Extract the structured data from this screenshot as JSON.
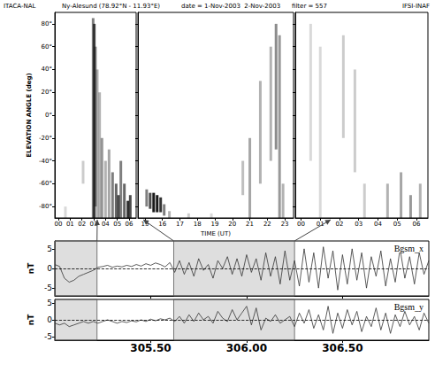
{
  "header": {
    "instrument": "ITACA-NAL",
    "station": "Ny-Alesund (78.92°N - 11.93°E)",
    "date": "date = 1-Nov-2003  2-Nov-2003",
    "filter": "filter = 557",
    "institute": "IFSI-INAF"
  },
  "chart_data": [
    {
      "type": "heatmap",
      "ylabel": "ELEVATION ANGLE (deg)",
      "color": "#000000",
      "grid": false,
      "xlim": [
        -0.3,
        6.6
      ],
      "xticks": [
        {
          "value": 0,
          "label": "00"
        },
        {
          "value": 1,
          "label": "01"
        },
        {
          "value": 2,
          "label": "02"
        },
        {
          "value": 3,
          "label": "03"
        },
        {
          "value": 4,
          "label": "04"
        },
        {
          "value": 5,
          "label": "05"
        },
        {
          "value": 6,
          "label": "06"
        }
      ],
      "ylim": [
        -90,
        90
      ],
      "yticks": [
        {
          "value": -80,
          "label": "-80°"
        },
        {
          "value": -60,
          "label": "-60°"
        },
        {
          "value": -40,
          "label": "-40°"
        },
        {
          "value": -20,
          "label": "-20°"
        },
        {
          "value": 0,
          "label": "0°"
        },
        {
          "value": 20,
          "label": "20°"
        },
        {
          "value": 40,
          "label": "40°"
        },
        {
          "value": 60,
          "label": "60°"
        },
        {
          "value": 80,
          "label": "80°"
        }
      ],
      "streaks": [
        [
          0.6,
          -90,
          -80,
          0.15
        ],
        [
          2.1,
          -60,
          -40,
          0.2
        ],
        [
          2.95,
          -90,
          85,
          0.5
        ],
        [
          3.05,
          -90,
          80,
          0.7
        ],
        [
          3.15,
          -80,
          60,
          0.4
        ],
        [
          3.3,
          -90,
          40,
          0.3
        ],
        [
          3.5,
          -90,
          20,
          0.3
        ],
        [
          3.7,
          -90,
          -20,
          0.4
        ],
        [
          4.0,
          -90,
          -40,
          0.3
        ],
        [
          4.3,
          -90,
          -30,
          0.35
        ],
        [
          4.6,
          -90,
          -50,
          0.5
        ],
        [
          4.9,
          -90,
          -60,
          0.6
        ],
        [
          5.1,
          -90,
          -70,
          0.7
        ],
        [
          5.3,
          -90,
          -40,
          0.5
        ],
        [
          5.6,
          -90,
          -60,
          0.6
        ],
        [
          5.9,
          -90,
          -75,
          0.8
        ],
        [
          6.1,
          -90,
          -70,
          0.7
        ]
      ]
    },
    {
      "type": "heatmap",
      "xlabel": "TIME (UT)",
      "color": "#000000",
      "grid": false,
      "tick_labels": "x",
      "xlim": [
        14.6,
        23.5
      ],
      "xticks": [
        15,
        16,
        17,
        18,
        19,
        20,
        21,
        22,
        23
      ],
      "ylim": [
        -90,
        90
      ],
      "yticks": [
        -80,
        -60,
        -40,
        -20,
        0,
        20,
        40,
        60,
        80
      ],
      "streaks": [
        [
          15.1,
          -80,
          -65,
          0.5
        ],
        [
          15.3,
          -82,
          -68,
          0.7
        ],
        [
          15.5,
          -85,
          -68,
          0.9
        ],
        [
          15.7,
          -85,
          -70,
          0.9
        ],
        [
          15.9,
          -85,
          -72,
          0.8
        ],
        [
          16.1,
          -88,
          -78,
          0.5
        ],
        [
          16.4,
          -90,
          -84,
          0.3
        ],
        [
          17.5,
          -90,
          -86,
          0.2
        ],
        [
          18.8,
          -90,
          -86,
          0.15
        ],
        [
          20.6,
          -70,
          -40,
          0.25
        ],
        [
          21.0,
          -90,
          -20,
          0.35
        ],
        [
          21.6,
          -60,
          30,
          0.3
        ],
        [
          22.2,
          -40,
          60,
          0.3
        ],
        [
          22.5,
          -30,
          80,
          0.45
        ],
        [
          22.7,
          -90,
          70,
          0.4
        ],
        [
          22.9,
          -90,
          -60,
          0.3
        ]
      ]
    },
    {
      "type": "heatmap",
      "color": "#000000",
      "grid": false,
      "tick_labels": "x",
      "xlim": [
        -0.3,
        6.6
      ],
      "xticks": [
        {
          "value": 0,
          "label": "00"
        },
        {
          "value": 1,
          "label": "01"
        },
        {
          "value": 2,
          "label": "02"
        },
        {
          "value": 3,
          "label": "03"
        },
        {
          "value": 4,
          "label": "04"
        },
        {
          "value": 5,
          "label": "05"
        },
        {
          "value": 6,
          "label": "06"
        }
      ],
      "ylim": [
        -90,
        90
      ],
      "yticks": [
        -80,
        -60,
        -40,
        -20,
        0,
        20,
        40,
        60,
        80
      ],
      "streaks": [
        [
          0.5,
          -40,
          80,
          0.15
        ],
        [
          1.0,
          -90,
          60,
          0.15
        ],
        [
          2.2,
          -20,
          70,
          0.2
        ],
        [
          2.8,
          -50,
          40,
          0.2
        ],
        [
          3.3,
          -90,
          -60,
          0.2
        ],
        [
          4.5,
          -90,
          -60,
          0.3
        ],
        [
          5.2,
          -90,
          -50,
          0.35
        ],
        [
          5.7,
          -90,
          -70,
          0.4
        ],
        [
          6.2,
          -90,
          -60,
          0.3
        ]
      ]
    },
    {
      "type": "line",
      "ylabel": "nT",
      "grid": false,
      "tick_labels": "y",
      "xlim": [
        305.0,
        306.95
      ],
      "xticks": [
        {
          "value": 305.5,
          "label": "305.50"
        },
        {
          "value": 306,
          "label": "306.00"
        },
        {
          "value": 306.5,
          "label": "306.50"
        }
      ],
      "ylim": [
        -7,
        7
      ],
      "yticks": [
        -5,
        0,
        5
      ],
      "hline": 0,
      "shaded": [
        [
          305.0,
          305.22
        ],
        [
          305.62,
          306.25
        ]
      ],
      "x": [
        305,
        305.025,
        305.05,
        305.075,
        305.1,
        305.125,
        305.15,
        305.175,
        305.2,
        305.225,
        305.25,
        305.275,
        305.3,
        305.325,
        305.35,
        305.375,
        305.4,
        305.425,
        305.45,
        305.475,
        305.5,
        305.525,
        305.55,
        305.575,
        305.6,
        305.625,
        305.65,
        305.675,
        305.7,
        305.725,
        305.75,
        305.775,
        305.8,
        305.825,
        305.85,
        305.875,
        305.9,
        305.925,
        305.95,
        305.975,
        306,
        306.025,
        306.05,
        306.075,
        306.1,
        306.125,
        306.15,
        306.175,
        306.2,
        306.225,
        306.25,
        306.275,
        306.3,
        306.325,
        306.35,
        306.375,
        306.4,
        306.425,
        306.45,
        306.475,
        306.5,
        306.525,
        306.55,
        306.575,
        306.6,
        306.625,
        306.65,
        306.675,
        306.7,
        306.725,
        306.75,
        306.775,
        306.8,
        306.825,
        306.85,
        306.875,
        306.9,
        306.925,
        306.95
      ],
      "series": [
        {
          "name": "Bgsm_x",
          "color": "#333333",
          "values": [
            1.0,
            0.5,
            -2.5,
            -3.5,
            -3.0,
            -2.0,
            -1.5,
            -1.0,
            -0.5,
            0.3,
            0.5,
            0.8,
            0.3,
            0.6,
            0.4,
            0.8,
            0.5,
            1.0,
            0.6,
            1.2,
            0.8,
            1.4,
            1.0,
            0.4,
            1.5,
            -1.0,
            2.0,
            -1.5,
            1.5,
            -2.0,
            2.5,
            -0.5,
            1.0,
            -2.5,
            2.0,
            0.0,
            3.0,
            -1.5,
            2.5,
            -2.0,
            3.5,
            -1.0,
            2.5,
            -3.0,
            4.0,
            -2.0,
            3.0,
            -4.0,
            4.5,
            -3.0,
            2.0,
            -4.5,
            5.0,
            -3.5,
            4.0,
            -5.0,
            5.5,
            -2.5,
            4.5,
            -5.5,
            3.5,
            -4.0,
            5.0,
            -3.0,
            4.0,
            -5.0,
            3.0,
            -2.0,
            4.5,
            -4.5,
            2.5,
            -3.5,
            5.0,
            -2.5,
            3.0,
            -4.0,
            4.0,
            -1.5,
            2.0
          ]
        }
      ]
    },
    {
      "type": "line",
      "ylabel": "nT",
      "grid": false,
      "xlim": [
        305.0,
        306.95
      ],
      "xticks": [
        {
          "value": 305.5,
          "label": "305.50"
        },
        {
          "value": 306,
          "label": "306.00"
        },
        {
          "value": 306.5,
          "label": "306.50"
        }
      ],
      "ylim": [
        -6,
        6
      ],
      "yticks": [
        -5,
        0,
        5
      ],
      "hline": 0,
      "shaded": [
        [
          305.0,
          305.22
        ],
        [
          305.62,
          306.25
        ]
      ],
      "x": [
        305,
        305.025,
        305.05,
        305.075,
        305.1,
        305.125,
        305.15,
        305.175,
        305.2,
        305.225,
        305.25,
        305.275,
        305.3,
        305.325,
        305.35,
        305.375,
        305.4,
        305.425,
        305.45,
        305.475,
        305.5,
        305.525,
        305.55,
        305.575,
        305.6,
        305.625,
        305.65,
        305.675,
        305.7,
        305.725,
        305.75,
        305.775,
        305.8,
        305.825,
        305.85,
        305.875,
        305.9,
        305.925,
        305.95,
        305.975,
        306,
        306.025,
        306.05,
        306.075,
        306.1,
        306.125,
        306.15,
        306.175,
        306.2,
        306.225,
        306.25,
        306.275,
        306.3,
        306.325,
        306.35,
        306.375,
        306.4,
        306.425,
        306.45,
        306.475,
        306.5,
        306.525,
        306.55,
        306.575,
        306.6,
        306.625,
        306.65,
        306.675,
        306.7,
        306.725,
        306.75,
        306.775,
        306.8,
        306.825,
        306.85,
        306.875,
        306.9,
        306.925,
        306.95
      ],
      "series": [
        {
          "name": "Bgsm_y",
          "color": "#333333",
          "values": [
            -1.0,
            -1.5,
            -1.0,
            -2.0,
            -1.5,
            -1.0,
            -0.5,
            -1.0,
            -0.5,
            -1.0,
            -0.5,
            0.0,
            -0.5,
            -1.0,
            -0.5,
            -0.8,
            -0.3,
            -0.6,
            0.0,
            -0.5,
            0.2,
            -0.3,
            0.3,
            0.0,
            0.5,
            -0.5,
            1.0,
            -1.0,
            1.5,
            -0.5,
            2.0,
            0.0,
            1.0,
            -1.0,
            2.5,
            0.5,
            -0.5,
            3.0,
            0.0,
            2.0,
            4.0,
            -1.5,
            3.5,
            -3.0,
            0.5,
            -0.5,
            1.5,
            -1.0,
            0.0,
            1.0,
            -2.0,
            2.0,
            -1.0,
            3.0,
            -2.5,
            1.5,
            -3.0,
            4.0,
            -4.0,
            2.0,
            -2.5,
            3.0,
            -1.5,
            2.5,
            -3.5,
            1.0,
            -2.0,
            3.5,
            -3.0,
            2.0,
            -4.0,
            1.5,
            -2.0,
            2.5,
            -1.5,
            1.0,
            -3.0,
            2.0,
            -1.0
          ]
        }
      ]
    }
  ]
}
